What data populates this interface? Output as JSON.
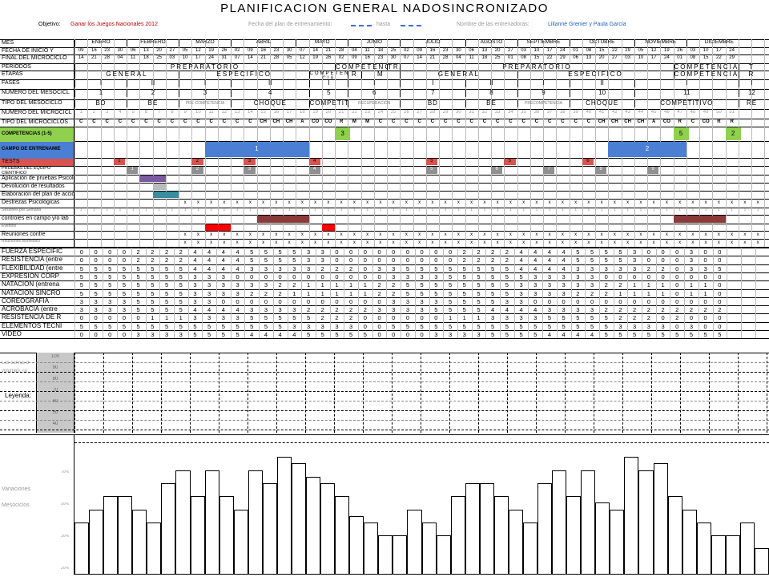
{
  "title": "PLANIFICACION GENERAL NADOSINCRONIZADO",
  "header": {
    "objective_label": "Objetivo:",
    "objective_value": "Ganar los Juegos Nacionales 2012",
    "plan_date_label": "Fecha del plan de entrenamiento:",
    "until_label": "hasta",
    "coaches_label": "Nombre de las entrenadoras:",
    "coaches_value": "Lilianne Grenier y Paula García"
  },
  "row_labels": {
    "mes": "MES",
    "fecha_inicio": "FECHA DE INICIO Y",
    "final_micro": "FINAL DEL MICROCICLO",
    "periodos": "PERIODOS",
    "etapas": "ETAPAS",
    "fases": "FASES",
    "num_meso": "NUMERO DEL MESOCICL",
    "tipo_meso": "TIPO DEL MESOCICLO",
    "num_micro": "NUMERO DEL MICROCICL",
    "tipo_micro": "TIPO DEL MICROCICLOS",
    "competencias": "COMPETENCIAS (1-5)",
    "campo": "CAMPO DE ENTRENAMIE",
    "tests": "TESTS",
    "pruebas": "PRUEBAS DEL EQUIPO CIENTIFICO",
    "apl_psico": "Aplicación de pruebas Psicológicas",
    "devolucion": "Devolución de resultados",
    "plan_accion": "Elaboración del plan de acción",
    "destrezas": "Destrezas Psicológicas",
    "sesiones": "Sesiones por Semana",
    "controles": "controles en campo y/o lab",
    "eventos": "Eventos",
    "reuniones_conf": "Reuniones conf/e",
    "reuniones_bio": "Reuniones biomédico"
  },
  "months": [
    "ENERO",
    "FEBRERO",
    "MARZO",
    "ABRIL",
    "MAYO",
    "JUNIO",
    "JULIO",
    "AGOSTO",
    "SEPTIEMBRE",
    "OCTUBRE",
    "NOVIEMBRE",
    "DICIEMBRE"
  ],
  "dates_start": [
    "09",
    "16",
    "23",
    "30",
    "06",
    "13",
    "20",
    "27",
    "05",
    "12",
    "19",
    "26",
    "02",
    "09",
    "16",
    "23",
    "30",
    "07",
    "14",
    "21",
    "28",
    "04",
    "11",
    "18",
    "25",
    "02",
    "09",
    "16",
    "23",
    "30",
    "06",
    "13",
    "20",
    "27",
    "03",
    "10",
    "17",
    "24",
    "01",
    "08",
    "15",
    "22",
    "29",
    "05",
    "12",
    "19",
    "26",
    "03",
    "10",
    "17",
    "24"
  ],
  "dates_end": [
    "14",
    "21",
    "28",
    "04",
    "11",
    "18",
    "25",
    "03",
    "10",
    "17",
    "24",
    "31",
    "07",
    "14",
    "21",
    "28",
    "05",
    "12",
    "19",
    "26",
    "02",
    "09",
    "16",
    "23",
    "30",
    "07",
    "14",
    "21",
    "28",
    "04",
    "11",
    "18",
    "25",
    "01",
    "08",
    "15",
    "22",
    "29",
    "06",
    "13",
    "20",
    "27",
    "03",
    "10",
    "17",
    "24",
    "01",
    "08",
    "15",
    "22",
    "29"
  ],
  "periodos": [
    "PREPARATORIO",
    "COMPETENCIA",
    "TRANSITORIO",
    "PREPARATORIO",
    "COMPETENCIA",
    "T"
  ],
  "etapas": [
    "GENERAL",
    "ESPECIFICO",
    "COMPETEN CIA",
    "R",
    "M",
    "GENERAL",
    "ESPECIFICO",
    "COMPETENCIA",
    "R"
  ],
  "fases": [
    "I",
    "II",
    "I",
    "II",
    "I",
    "I",
    "I",
    "II",
    "I",
    "II",
    "I",
    "I"
  ],
  "num_meso": [
    "1",
    "2",
    "3",
    "4",
    "5",
    "6",
    "7",
    "8",
    "9",
    "10",
    "11",
    "12"
  ],
  "tipo_meso": [
    "BD",
    "BE",
    "PRE-COMPETENCIA",
    "CHOQUE",
    "COMPETITIV",
    "RECUPERACION",
    "BD",
    "BE",
    "PRECOMPETENCIA",
    "CHOQUE",
    "COMPETITIVO",
    "RE"
  ],
  "micro_nums": [
    "1",
    "2",
    "3",
    "4",
    "5",
    "6",
    "7",
    "8",
    "9",
    "10",
    "11",
    "12",
    "13",
    "14",
    "15",
    "16",
    "17",
    "18",
    "19",
    "20",
    "21",
    "22",
    "23",
    "24",
    "25",
    "26",
    "27",
    "28",
    "29",
    "30",
    "31",
    "32",
    "33",
    "34",
    "35",
    "36",
    "37",
    "38",
    "39",
    "40",
    "41",
    "42",
    "43",
    "44",
    "45",
    "46",
    "47",
    "48",
    "49",
    "50",
    "51"
  ],
  "micro_types": [
    "C",
    "C",
    "C",
    "C",
    "C",
    "C",
    "C",
    "C",
    "C",
    "C",
    "C",
    "C",
    "C",
    "C",
    "CH",
    "CH",
    "CH",
    "A",
    "CO",
    "CO",
    "R",
    "M",
    "M",
    "C",
    "C",
    "C",
    "C",
    "C",
    "C",
    "C",
    "C",
    "C",
    "C",
    "C",
    "C",
    "C",
    "C",
    "C",
    "C",
    "C",
    "CH",
    "CH",
    "CH",
    "CH",
    "A",
    "CO",
    "R",
    "C",
    "CO",
    "R",
    "R"
  ],
  "competencias": [
    "3",
    "5",
    "2"
  ],
  "campo": [
    "1",
    "2"
  ],
  "tests": [
    "1",
    "2",
    "3",
    "4",
    "5",
    "5",
    "6"
  ],
  "pruebas": [
    "1",
    "2",
    "3",
    "4",
    "5",
    "6",
    "7",
    "8",
    "9"
  ],
  "x_mark": "x",
  "sessions_mark": "1",
  "training": [
    {
      "label": "FUERZA ESPECIFIC",
      "values": [
        "0",
        "0",
        "0",
        "0",
        "2",
        "2",
        "2",
        "2",
        "4",
        "4",
        "4",
        "4",
        "5",
        "5",
        "5",
        "5",
        "3",
        "3",
        "0",
        "0",
        "0",
        "0",
        "0",
        "0",
        "0",
        "0",
        "0",
        "2",
        "2",
        "2",
        "2",
        "4",
        "4",
        "4",
        "4",
        "5",
        "5",
        "5",
        "5",
        "3",
        "0",
        "0",
        "0",
        "3",
        "0",
        "0"
      ]
    },
    {
      "label": "RESISTENCIA (entre",
      "values": [
        "0",
        "0",
        "0",
        "0",
        "2",
        "2",
        "2",
        "2",
        "4",
        "4",
        "4",
        "4",
        "5",
        "5",
        "5",
        "5",
        "3",
        "3",
        "0",
        "0",
        "0",
        "0",
        "0",
        "0",
        "0",
        "0",
        "0",
        "2",
        "2",
        "2",
        "2",
        "4",
        "4",
        "4",
        "4",
        "5",
        "5",
        "5",
        "5",
        "3",
        "0",
        "0",
        "0",
        "3",
        "0",
        "0"
      ]
    },
    {
      "label": "FLEXIBILIDAD (entre",
      "values": [
        "5",
        "5",
        "5",
        "5",
        "5",
        "5",
        "5",
        "5",
        "4",
        "4",
        "4",
        "4",
        "3",
        "3",
        "3",
        "3",
        "3",
        "2",
        "2",
        "2",
        "0",
        "3",
        "3",
        "5",
        "5",
        "5",
        "5",
        "5",
        "5",
        "5",
        "5",
        "4",
        "4",
        "4",
        "4",
        "3",
        "3",
        "3",
        "3",
        "3",
        "2",
        "2",
        "0",
        "3",
        "3",
        "5"
      ]
    },
    {
      "label": "EXPRESION CORP",
      "values": [
        "5",
        "5",
        "5",
        "5",
        "5",
        "5",
        "5",
        "5",
        "3",
        "3",
        "3",
        "0",
        "0",
        "0",
        "0",
        "0",
        "0",
        "0",
        "0",
        "0",
        "0",
        "0",
        "3",
        "3",
        "3",
        "3",
        "5",
        "5",
        "5",
        "5",
        "5",
        "5",
        "3",
        "3",
        "3",
        "3",
        "3",
        "0",
        "0",
        "0",
        "0",
        "0",
        "0",
        "0",
        "0",
        "0"
      ]
    },
    {
      "label": "NATACION (entrena",
      "values": [
        "5",
        "5",
        "5",
        "5",
        "5",
        "5",
        "5",
        "5",
        "3",
        "3",
        "3",
        "3",
        "3",
        "3",
        "2",
        "2",
        "1",
        "1",
        "1",
        "1",
        "1",
        "2",
        "2",
        "5",
        "5",
        "5",
        "5",
        "5",
        "5",
        "5",
        "5",
        "3",
        "3",
        "3",
        "3",
        "3",
        "3",
        "2",
        "2",
        "1",
        "1",
        "1",
        "0",
        "1",
        "1",
        "0"
      ]
    },
    {
      "label": "NATACION SINCRO",
      "values": [
        "5",
        "5",
        "5",
        "5",
        "5",
        "5",
        "5",
        "5",
        "3",
        "3",
        "3",
        "3",
        "2",
        "2",
        "2",
        "1",
        "1",
        "1",
        "1",
        "1",
        "1",
        "2",
        "2",
        "5",
        "5",
        "5",
        "5",
        "5",
        "5",
        "5",
        "5",
        "3",
        "3",
        "3",
        "3",
        "2",
        "2",
        "2",
        "1",
        "1",
        "1",
        "1",
        "0",
        "1",
        "1",
        "0"
      ]
    },
    {
      "label": "COREOGRAFIA",
      "values": [
        "3",
        "3",
        "3",
        "3",
        "5",
        "5",
        "5",
        "5",
        "3",
        "3",
        "0",
        "0",
        "0",
        "0",
        "0",
        "0",
        "0",
        "0",
        "0",
        "0",
        "0",
        "0",
        "3",
        "3",
        "3",
        "3",
        "5",
        "5",
        "5",
        "5",
        "3",
        "3",
        "0",
        "0",
        "0",
        "0",
        "0",
        "0",
        "0",
        "0",
        "0",
        "0",
        "0",
        "0",
        "0",
        "0"
      ]
    },
    {
      "label": "ACROBACIA (entre",
      "values": [
        "3",
        "3",
        "3",
        "3",
        "5",
        "5",
        "5",
        "5",
        "4",
        "4",
        "4",
        "4",
        "3",
        "3",
        "3",
        "3",
        "2",
        "2",
        "2",
        "2",
        "2",
        "3",
        "3",
        "3",
        "3",
        "5",
        "5",
        "5",
        "5",
        "4",
        "4",
        "4",
        "4",
        "3",
        "3",
        "3",
        "3",
        "2",
        "2",
        "2",
        "2",
        "2",
        "2",
        "2",
        "2",
        "2"
      ]
    },
    {
      "label": "RESISTENCIA DE R",
      "values": [
        "0",
        "0",
        "0",
        "0",
        "0",
        "1",
        "1",
        "1",
        "3",
        "3",
        "3",
        "3",
        "5",
        "5",
        "5",
        "5",
        "5",
        "2",
        "2",
        "2",
        "0",
        "0",
        "0",
        "0",
        "0",
        "0",
        "1",
        "1",
        "1",
        "3",
        "3",
        "3",
        "3",
        "5",
        "5",
        "5",
        "5",
        "5",
        "2",
        "2",
        "2",
        "0",
        "2",
        "0",
        "0",
        "0"
      ]
    },
    {
      "label": "ELEMENTOS TECNI",
      "values": [
        "5",
        "5",
        "5",
        "5",
        "5",
        "5",
        "5",
        "5",
        "5",
        "5",
        "5",
        "5",
        "5",
        "5",
        "5",
        "3",
        "3",
        "3",
        "3",
        "3",
        "0",
        "0",
        "5",
        "5",
        "5",
        "5",
        "5",
        "5",
        "5",
        "5",
        "5",
        "5",
        "5",
        "5",
        "5",
        "5",
        "5",
        "5",
        "3",
        "3",
        "3",
        "3",
        "0",
        "3",
        "0",
        "0"
      ]
    },
    {
      "label": "VIDEO",
      "values": [
        "0",
        "0",
        "0",
        "0",
        "3",
        "3",
        "3",
        "3",
        "5",
        "5",
        "5",
        "5",
        "4",
        "4",
        "4",
        "4",
        "5",
        "5",
        "5",
        "5",
        "5",
        "0",
        "0",
        "0",
        "0",
        "3",
        "3",
        "3",
        "3",
        "5",
        "5",
        "5",
        "5",
        "4",
        "4",
        "4",
        "4",
        "5",
        "5",
        "5",
        "5",
        "5",
        "5",
        "5",
        "5",
        "5"
      ]
    }
  ],
  "legend": {
    "scale": [
      "100",
      "90",
      "80",
      "70",
      "60",
      "50",
      "40"
    ],
    "curve_label1": "Las curvas d",
    "curve_label2": "volumen, cu",
    "title": "Leyenda:"
  },
  "chart_data": {
    "type": "bar",
    "series": [
      {
        "values": [
          40,
          50,
          60,
          60,
          50,
          40,
          70,
          80,
          60,
          80,
          60,
          50,
          80,
          70,
          90,
          85,
          75,
          70,
          60,
          45,
          40,
          30,
          30,
          50,
          40,
          30,
          60,
          70,
          70,
          60,
          50,
          40,
          70,
          80,
          60,
          80,
          55,
          50,
          90,
          80,
          85,
          60,
          50,
          40,
          30,
          30,
          40,
          20
        ]
      }
    ],
    "ylim": [
      0,
      100
    ],
    "label_variation": "Variaciones",
    "label_meso": "Mesociclos",
    "ylabels": [
      "70%",
      "50%",
      "30%",
      "20%",
      "0%"
    ]
  },
  "colors": {
    "green": "#8fd14f",
    "blue": "#4a7fd4",
    "red": "#d9534f",
    "grey": "#909090",
    "maroon": "#8b3a3a",
    "purple": "#7a5aa0",
    "teal": "#3a8ca0",
    "bright_red": "#ff0000"
  }
}
